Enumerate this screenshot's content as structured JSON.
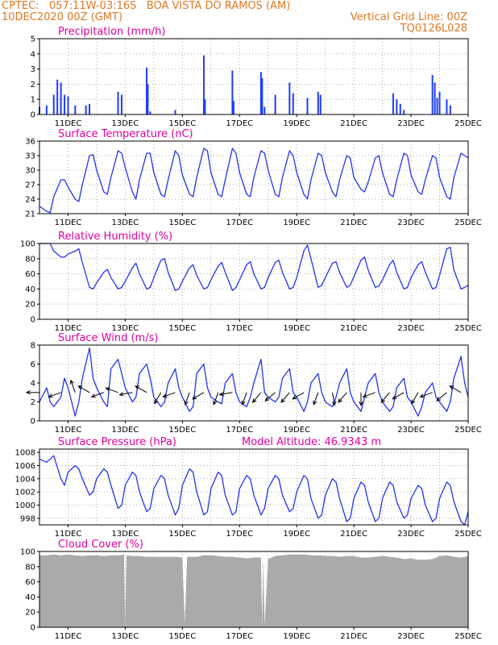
{
  "header": {
    "left_line1": "CPTEC:   057:11W-03:16S   BOA VISTA DO RAMOS (AM)",
    "left_line2": "10DEC2020 00Z (GMT)",
    "right_line1": "Vertical Grid Line: 00Z",
    "right_line2": "TQ0126L028"
  },
  "colors": {
    "header": "#e07820",
    "panel_title": "#e000a0",
    "series_line": "#2233ee",
    "precip_bar": "#1e3cff",
    "cloud_fill": "#aaaaaa",
    "grid": "#999999"
  },
  "time_axis": {
    "start": "2020-12-10T00:00Z",
    "end": "2020-12-25T00:00Z",
    "tick_labels": [
      "11DEC",
      "13DEC",
      "15DEC",
      "17DEC",
      "19DEC",
      "21DEC",
      "23DEC",
      "25DEC"
    ],
    "grid": "dotted, daily 00Z"
  },
  "chart_data": [
    {
      "id": "precip",
      "type": "bar",
      "title": "Precipitation (mm/h)",
      "ylim": [
        0,
        5
      ],
      "yticks": [
        0,
        1,
        2,
        3,
        4,
        5
      ],
      "x": [
        "10 00Z",
        "10 06Z",
        "10 12Z",
        "10 15Z",
        "10 18Z",
        "10 21Z",
        "11 00Z",
        "11 06Z",
        "11 15Z",
        "11 18Z",
        "12 18Z",
        "12 21Z",
        "13 18Z",
        "13 19Z",
        "13 21Z",
        "14 18Z",
        "15 18Z",
        "15 19Z",
        "16 18Z",
        "16 19Z",
        "17 18Z",
        "17 19Z",
        "17 21Z",
        "18 06Z",
        "18 18Z",
        "18 21Z",
        "19 09Z",
        "19 18Z",
        "19 20Z",
        "22 09Z",
        "22 12Z",
        "22 15Z",
        "22 18Z",
        "23 18Z",
        "23 20Z",
        "23 22Z",
        "24 00Z",
        "24 06Z",
        "24 09Z"
      ],
      "values": [
        0.5,
        0.6,
        1.3,
        2.3,
        2.1,
        1.3,
        1.2,
        0.6,
        0.6,
        0.7,
        1.5,
        1.3,
        3.1,
        2.0,
        0.2,
        0.3,
        3.9,
        1.0,
        2.9,
        0.9,
        2.8,
        2.4,
        0.5,
        1.3,
        2.1,
        1.4,
        1.1,
        1.5,
        1.3,
        1.4,
        1.0,
        0.7,
        0.3,
        2.6,
        2.1,
        1.1,
        1.5,
        1.0,
        0.6
      ]
    },
    {
      "id": "temperature",
      "type": "line",
      "title": "Surface Temperature (nC)",
      "ylim": [
        21,
        36
      ],
      "yticks": [
        21,
        24,
        27,
        30,
        33,
        36
      ],
      "x": [
        "10 00Z",
        "10 06Z",
        "10 09Z",
        "10 12Z",
        "10 18Z",
        "10 21Z",
        "11 00Z",
        "11 06Z",
        "11 09Z",
        "11 12Z",
        "11 18Z",
        "11 21Z",
        "12 00Z",
        "12 06Z",
        "12 09Z",
        "12 12Z",
        "12 18Z",
        "12 21Z",
        "13 00Z",
        "13 06Z",
        "13 09Z",
        "13 12Z",
        "13 18Z",
        "13 21Z",
        "14 00Z",
        "14 06Z",
        "14 09Z",
        "14 12Z",
        "14 18Z",
        "14 21Z",
        "15 00Z",
        "15 06Z",
        "15 09Z",
        "15 12Z",
        "15 18Z",
        "15 21Z",
        "16 00Z",
        "16 06Z",
        "16 09Z",
        "16 12Z",
        "16 18Z",
        "16 21Z",
        "17 00Z",
        "17 06Z",
        "17 09Z",
        "17 12Z",
        "17 18Z",
        "17 21Z",
        "18 00Z",
        "18 06Z",
        "18 09Z",
        "18 12Z",
        "18 18Z",
        "18 21Z",
        "19 00Z",
        "19 06Z",
        "19 09Z",
        "19 12Z",
        "19 18Z",
        "19 21Z",
        "20 00Z",
        "20 06Z",
        "20 09Z",
        "20 12Z",
        "20 18Z",
        "20 21Z",
        "21 00Z",
        "21 06Z",
        "21 09Z",
        "21 12Z",
        "21 18Z",
        "21 21Z",
        "22 00Z",
        "22 06Z",
        "22 09Z",
        "22 12Z",
        "22 18Z",
        "22 21Z",
        "23 00Z",
        "23 06Z",
        "23 09Z",
        "23 12Z",
        "23 18Z",
        "23 21Z",
        "24 00Z",
        "24 06Z",
        "24 09Z",
        "24 12Z",
        "24 18Z",
        "24 21Z",
        "25 00Z"
      ],
      "values": [
        22.5,
        21.5,
        21.2,
        24.5,
        28.0,
        28.0,
        26.5,
        24.0,
        23.5,
        27.0,
        33.0,
        33.2,
        30.0,
        25.5,
        25.0,
        28.5,
        34.0,
        33.5,
        30.5,
        25.5,
        24.0,
        28.0,
        33.5,
        33.5,
        29.5,
        25.0,
        24.5,
        28.0,
        34.0,
        33.0,
        29.0,
        25.0,
        24.5,
        28.5,
        34.5,
        34.0,
        29.5,
        25.0,
        24.5,
        28.0,
        34.5,
        33.5,
        29.5,
        25.0,
        24.5,
        28.5,
        34.0,
        33.5,
        30.0,
        25.0,
        24.5,
        28.5,
        34.0,
        33.0,
        29.5,
        25.0,
        24.0,
        28.0,
        33.5,
        33.0,
        29.5,
        25.5,
        24.5,
        28.0,
        33.0,
        32.5,
        28.5,
        26.0,
        25.5,
        27.5,
        32.5,
        33.0,
        29.5,
        25.0,
        24.5,
        28.0,
        33.5,
        33.0,
        29.0,
        25.5,
        25.0,
        28.0,
        33.0,
        32.5,
        28.5,
        24.5,
        24.0,
        28.5,
        33.5,
        33.0,
        32.5
      ]
    },
    {
      "id": "humidity",
      "type": "line",
      "title": "Relative Humidity (%)",
      "ylim": [
        0,
        100
      ],
      "yticks": [
        0,
        20,
        40,
        60,
        80,
        100
      ],
      "x": [
        "10 00Z",
        "10 06Z",
        "10 09Z",
        "10 12Z",
        "10 18Z",
        "10 21Z",
        "11 00Z",
        "11 06Z",
        "11 09Z",
        "11 12Z",
        "11 18Z",
        "11 21Z",
        "12 00Z",
        "12 06Z",
        "12 09Z",
        "12 12Z",
        "12 18Z",
        "12 21Z",
        "13 00Z",
        "13 06Z",
        "13 09Z",
        "13 12Z",
        "13 18Z",
        "13 21Z",
        "14 00Z",
        "14 06Z",
        "14 09Z",
        "14 12Z",
        "14 18Z",
        "14 21Z",
        "15 00Z",
        "15 06Z",
        "15 09Z",
        "15 12Z",
        "15 18Z",
        "15 21Z",
        "16 00Z",
        "16 06Z",
        "16 09Z",
        "16 12Z",
        "16 18Z",
        "16 21Z",
        "17 00Z",
        "17 06Z",
        "17 09Z",
        "17 12Z",
        "17 18Z",
        "17 21Z",
        "18 00Z",
        "18 06Z",
        "18 09Z",
        "18 12Z",
        "18 18Z",
        "18 21Z",
        "19 00Z",
        "19 06Z",
        "19 09Z",
        "19 12Z",
        "19 18Z",
        "19 21Z",
        "20 00Z",
        "20 06Z",
        "20 09Z",
        "20 12Z",
        "20 18Z",
        "20 21Z",
        "21 00Z",
        "21 06Z",
        "21 09Z",
        "21 12Z",
        "21 18Z",
        "21 21Z",
        "22 00Z",
        "22 06Z",
        "22 09Z",
        "22 12Z",
        "22 18Z",
        "22 21Z",
        "23 00Z",
        "23 06Z",
        "23 09Z",
        "23 12Z",
        "23 18Z",
        "23 21Z",
        "24 00Z",
        "24 06Z",
        "24 09Z",
        "24 12Z",
        "24 18Z",
        "24 21Z",
        "25 00Z"
      ],
      "values": [
        100,
        100,
        100,
        90,
        82,
        82,
        86,
        90,
        93,
        75,
        42,
        40,
        48,
        62,
        66,
        55,
        40,
        42,
        50,
        68,
        74,
        60,
        40,
        42,
        55,
        78,
        80,
        62,
        38,
        40,
        50,
        68,
        72,
        58,
        40,
        42,
        52,
        70,
        75,
        62,
        38,
        42,
        52,
        72,
        76,
        60,
        40,
        42,
        55,
        75,
        78,
        62,
        40,
        42,
        55,
        90,
        98,
        80,
        42,
        45,
        55,
        74,
        76,
        62,
        42,
        45,
        56,
        78,
        82,
        65,
        42,
        44,
        52,
        72,
        78,
        62,
        40,
        42,
        55,
        72,
        76,
        62,
        40,
        42,
        58,
        93,
        95,
        65,
        40,
        42,
        45
      ]
    },
    {
      "id": "wind",
      "type": "line",
      "title": "Surface Wind (m/s)",
      "ylim": [
        0,
        8
      ],
      "yticks": [
        0,
        2,
        4,
        6,
        8
      ],
      "x": [
        "10 00Z",
        "10 06Z",
        "10 09Z",
        "10 12Z",
        "10 18Z",
        "10 21Z",
        "11 00Z",
        "11 06Z",
        "11 09Z",
        "11 12Z",
        "11 18Z",
        "11 21Z",
        "12 00Z",
        "12 06Z",
        "12 09Z",
        "12 12Z",
        "12 18Z",
        "12 21Z",
        "13 00Z",
        "13 06Z",
        "13 09Z",
        "13 12Z",
        "13 18Z",
        "13 21Z",
        "14 00Z",
        "14 06Z",
        "14 09Z",
        "14 12Z",
        "14 18Z",
        "14 21Z",
        "15 00Z",
        "15 06Z",
        "15 09Z",
        "15 12Z",
        "15 18Z",
        "15 21Z",
        "16 00Z",
        "16 06Z",
        "16 09Z",
        "16 12Z",
        "16 18Z",
        "16 21Z",
        "17 00Z",
        "17 06Z",
        "17 09Z",
        "17 12Z",
        "17 18Z",
        "17 21Z",
        "18 00Z",
        "18 06Z",
        "18 09Z",
        "18 12Z",
        "18 18Z",
        "18 21Z",
        "19 00Z",
        "19 06Z",
        "19 09Z",
        "19 12Z",
        "19 18Z",
        "19 21Z",
        "20 00Z",
        "20 06Z",
        "20 09Z",
        "20 12Z",
        "20 18Z",
        "20 21Z",
        "21 00Z",
        "21 06Z",
        "21 09Z",
        "21 12Z",
        "21 18Z",
        "21 21Z",
        "22 00Z",
        "22 06Z",
        "22 09Z",
        "22 12Z",
        "22 18Z",
        "22 21Z",
        "23 00Z",
        "23 06Z",
        "23 09Z",
        "23 12Z",
        "23 18Z",
        "23 21Z",
        "24 00Z",
        "24 06Z",
        "24 09Z",
        "24 12Z",
        "24 18Z",
        "24 21Z",
        "25 00Z"
      ],
      "values": [
        2.0,
        3.5,
        2.0,
        1.5,
        2.5,
        4.5,
        3.5,
        0.5,
        2.0,
        4.5,
        7.7,
        4.5,
        3.5,
        2.0,
        1.5,
        5.5,
        6.5,
        5.0,
        3.5,
        2.0,
        2.5,
        5.0,
        6.0,
        4.5,
        2.5,
        1.5,
        2.0,
        4.0,
        5.5,
        3.5,
        2.5,
        1.0,
        1.5,
        5.0,
        6.0,
        3.5,
        2.5,
        2.0,
        1.8,
        4.0,
        5.0,
        3.0,
        2.0,
        1.5,
        2.5,
        4.0,
        6.5,
        3.0,
        2.5,
        2.0,
        2.5,
        4.5,
        5.5,
        3.0,
        2.5,
        1.0,
        2.0,
        4.0,
        5.0,
        3.0,
        2.0,
        1.5,
        2.5,
        4.0,
        5.5,
        3.0,
        2.0,
        1.0,
        2.5,
        4.0,
        5.0,
        3.0,
        2.0,
        1.0,
        1.5,
        3.5,
        4.5,
        2.5,
        2.0,
        0.5,
        1.5,
        3.0,
        4.0,
        2.5,
        2.0,
        1.0,
        2.0,
        4.5,
        6.8,
        4.0,
        2.5
      ],
      "vectors": {
        "x": [
          "10 00Z",
          "10 18Z",
          "11 06Z",
          "11 18Z",
          "12 06Z",
          "12 18Z",
          "13 06Z",
          "13 18Z",
          "14 06Z",
          "14 18Z",
          "15 06Z",
          "15 18Z",
          "16 06Z",
          "16 18Z",
          "17 06Z",
          "17 18Z",
          "18 06Z",
          "18 18Z",
          "19 06Z",
          "19 18Z",
          "20 06Z",
          "20 18Z",
          "21 06Z",
          "21 18Z",
          "22 06Z",
          "22 18Z",
          "23 06Z",
          "23 18Z",
          "24 06Z",
          "24 18Z"
        ],
        "dir_deg": [
          270,
          250,
          340,
          300,
          250,
          290,
          260,
          300,
          210,
          250,
          200,
          240,
          200,
          260,
          200,
          220,
          230,
          220,
          240,
          200,
          170,
          220,
          180,
          250,
          220,
          240,
          210,
          250,
          230,
          300
        ]
      }
    },
    {
      "id": "pressure",
      "type": "line",
      "title": "Surface Pressure (hPa)",
      "subtitle": "Model Altitude: 46.9343 m",
      "ylim": [
        997,
        1008.5
      ],
      "yticks": [
        998,
        1000,
        1002,
        1004,
        1006,
        1008
      ],
      "x": [
        "10 00Z",
        "10 06Z",
        "10 09Z",
        "10 12Z",
        "10 18Z",
        "10 21Z",
        "11 00Z",
        "11 06Z",
        "11 09Z",
        "11 12Z",
        "11 18Z",
        "11 21Z",
        "12 00Z",
        "12 06Z",
        "12 09Z",
        "12 12Z",
        "12 18Z",
        "12 21Z",
        "13 00Z",
        "13 06Z",
        "13 09Z",
        "13 12Z",
        "13 18Z",
        "13 21Z",
        "14 00Z",
        "14 06Z",
        "14 09Z",
        "14 12Z",
        "14 18Z",
        "14 21Z",
        "15 00Z",
        "15 06Z",
        "15 09Z",
        "15 12Z",
        "15 18Z",
        "15 21Z",
        "16 00Z",
        "16 06Z",
        "16 09Z",
        "16 12Z",
        "16 18Z",
        "16 21Z",
        "17 00Z",
        "17 06Z",
        "17 09Z",
        "17 12Z",
        "17 18Z",
        "17 21Z",
        "18 00Z",
        "18 06Z",
        "18 09Z",
        "18 12Z",
        "18 18Z",
        "18 21Z",
        "19 00Z",
        "19 06Z",
        "19 09Z",
        "19 12Z",
        "19 18Z",
        "19 21Z",
        "20 00Z",
        "20 06Z",
        "20 09Z",
        "20 12Z",
        "20 18Z",
        "20 21Z",
        "21 00Z",
        "21 06Z",
        "21 09Z",
        "21 12Z",
        "21 18Z",
        "21 21Z",
        "22 00Z",
        "22 06Z",
        "22 09Z",
        "22 12Z",
        "22 18Z",
        "22 21Z",
        "23 00Z",
        "23 06Z",
        "23 09Z",
        "23 12Z",
        "23 18Z",
        "23 21Z",
        "24 00Z",
        "24 06Z",
        "24 09Z",
        "24 12Z",
        "24 18Z",
        "24 21Z",
        "25 00Z"
      ],
      "values": [
        1007.0,
        1006.5,
        1007.0,
        1007.5,
        1004.0,
        1003.0,
        1005.0,
        1006.0,
        1005.5,
        1004.0,
        1001.5,
        1002.0,
        1004.0,
        1005.5,
        1005.0,
        1003.0,
        999.5,
        1000.0,
        1003.0,
        1005.0,
        1004.5,
        1002.0,
        999.0,
        999.5,
        1002.5,
        1004.5,
        1004.0,
        1001.5,
        998.5,
        999.5,
        1003.0,
        1005.5,
        1005.0,
        1002.0,
        998.5,
        999.0,
        1002.5,
        1005.0,
        1004.5,
        1001.5,
        998.5,
        999.0,
        1002.5,
        1004.5,
        1004.0,
        1001.5,
        998.5,
        999.5,
        1002.5,
        1004.5,
        1004.0,
        1001.5,
        999.0,
        999.5,
        1002.0,
        1004.5,
        1004.0,
        1001.0,
        998.0,
        998.5,
        1001.5,
        1004.0,
        1003.5,
        1001.0,
        997.5,
        998.0,
        1001.0,
        1003.5,
        1003.0,
        1000.5,
        997.5,
        998.0,
        1001.0,
        1003.5,
        1003.0,
        1000.5,
        998.0,
        998.5,
        1001.0,
        1003.0,
        1002.5,
        1000.0,
        997.5,
        998.0,
        1001.0,
        1003.5,
        1003.0,
        1000.5,
        997.5,
        997.0,
        999.0
      ]
    },
    {
      "id": "cloud",
      "type": "area",
      "title": "Cloud Cover (%)",
      "ylim": [
        0,
        100
      ],
      "yticks": [
        0,
        20,
        40,
        60,
        80,
        100
      ],
      "x": [
        "10 00Z",
        "10 06Z",
        "10 12Z",
        "10 18Z",
        "11 00Z",
        "11 06Z",
        "11 12Z",
        "11 18Z",
        "12 00Z",
        "12 06Z",
        "12 12Z",
        "12 18Z",
        "12 23Z",
        "13 00Z",
        "13 01Z",
        "13 06Z",
        "13 12Z",
        "13 18Z",
        "14 00Z",
        "14 06Z",
        "14 12Z",
        "14 18Z",
        "15 00Z",
        "15 02Z",
        "15 04Z",
        "15 06Z",
        "15 12Z",
        "15 18Z",
        "16 00Z",
        "16 06Z",
        "16 12Z",
        "16 18Z",
        "17 00Z",
        "17 06Z",
        "17 12Z",
        "17 18Z",
        "17 19Z",
        "17 20Z",
        "17 21Z",
        "18 00Z",
        "18 06Z",
        "18 12Z",
        "18 18Z",
        "19 00Z",
        "19 06Z",
        "19 12Z",
        "19 18Z",
        "20 00Z",
        "20 06Z",
        "20 12Z",
        "20 18Z",
        "21 00Z",
        "21 06Z",
        "21 12Z",
        "21 18Z",
        "22 00Z",
        "22 06Z",
        "22 12Z",
        "22 18Z",
        "23 00Z",
        "23 06Z",
        "23 12Z",
        "23 18Z",
        "24 00Z",
        "24 06Z",
        "24 12Z",
        "24 18Z",
        "25 00Z"
      ],
      "values": [
        95,
        95,
        96,
        95,
        96,
        95,
        94,
        95,
        95,
        94,
        95,
        95,
        96,
        2,
        95,
        94,
        94,
        93,
        93,
        93,
        93,
        93,
        92,
        5,
        93,
        93,
        93,
        95,
        95,
        94,
        93,
        93,
        92,
        91,
        92,
        92,
        2,
        92,
        3,
        90,
        94,
        95,
        96,
        96,
        96,
        95,
        95,
        94,
        94,
        93,
        94,
        94,
        92,
        92,
        93,
        94,
        93,
        92,
        90,
        91,
        89,
        89,
        90,
        94,
        95,
        93,
        92,
        94
      ]
    }
  ]
}
